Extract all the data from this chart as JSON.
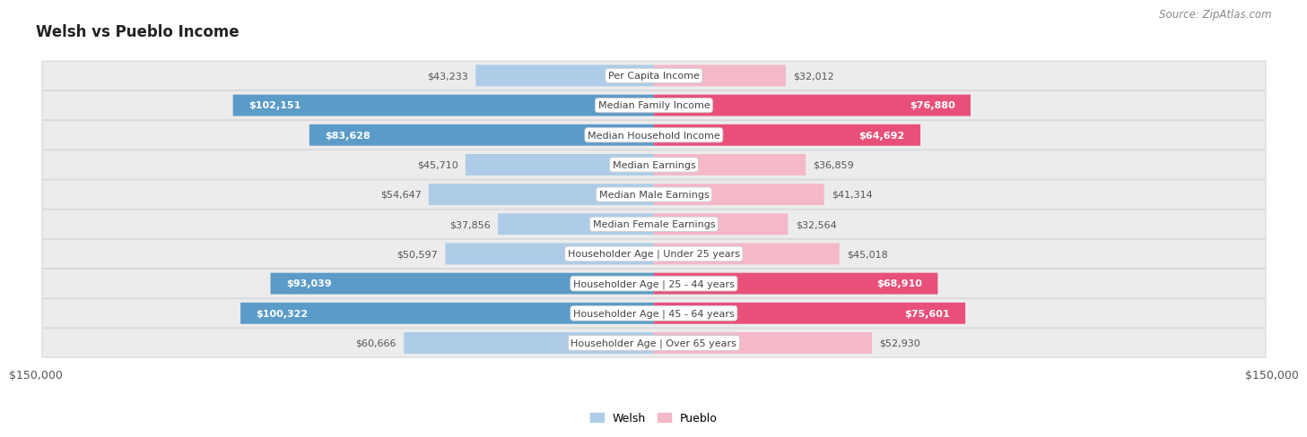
{
  "title": "Welsh vs Pueblo Income",
  "source": "Source: ZipAtlas.com",
  "categories": [
    "Per Capita Income",
    "Median Family Income",
    "Median Household Income",
    "Median Earnings",
    "Median Male Earnings",
    "Median Female Earnings",
    "Householder Age | Under 25 years",
    "Householder Age | 25 - 44 years",
    "Householder Age | 45 - 64 years",
    "Householder Age | Over 65 years"
  ],
  "welsh_values": [
    43233,
    102151,
    83628,
    45710,
    54647,
    37856,
    50597,
    93039,
    100322,
    60666
  ],
  "pueblo_values": [
    32012,
    76880,
    64692,
    36859,
    41314,
    32564,
    45018,
    68910,
    75601,
    52930
  ],
  "welsh_color_light": "#aecce8",
  "welsh_color_dark": "#5b9bc8",
  "pueblo_color_light": "#f4b8c8",
  "pueblo_color_dark": "#e8507a",
  "welsh_inside_threshold": 70000,
  "pueblo_inside_threshold": 60000,
  "max_value": 150000,
  "welsh_label": "Welsh",
  "pueblo_label": "Pueblo",
  "x_tick_left": "$150,000",
  "x_tick_right": "$150,000",
  "title_fontsize": 12,
  "source_fontsize": 8.5,
  "label_fontsize": 8,
  "bar_height": 0.72,
  "row_bg_color": "#ececec",
  "row_border_color": "#d8d8d8"
}
